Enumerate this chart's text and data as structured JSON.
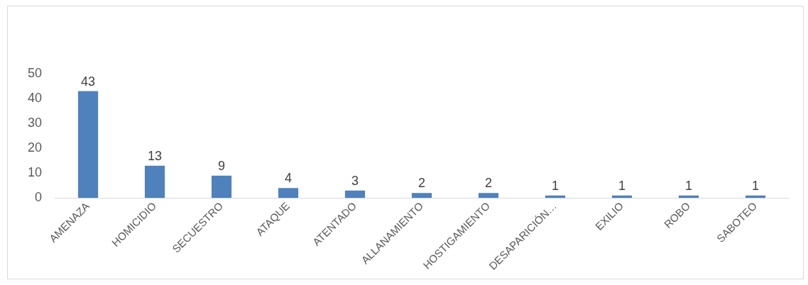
{
  "chart_data": {
    "type": "bar",
    "categories": [
      "AMENAZA",
      "HOMICIDIO",
      "SECUESTRO",
      "ATAQUE",
      "ATENTADO",
      "ALLANAMIENTO",
      "HOSTIGAMIENTO",
      "DESAPARICIÓN…",
      "EXILIO",
      "ROBO",
      "SABOTEO"
    ],
    "values": [
      43,
      13,
      9,
      4,
      3,
      2,
      2,
      1,
      1,
      1,
      1
    ],
    "color": "#4f81bd",
    "ylim": [
      0,
      50
    ],
    "yticks": [
      0,
      10,
      20,
      30,
      40,
      50
    ],
    "grid": false,
    "legend": false,
    "data_labels": true
  }
}
